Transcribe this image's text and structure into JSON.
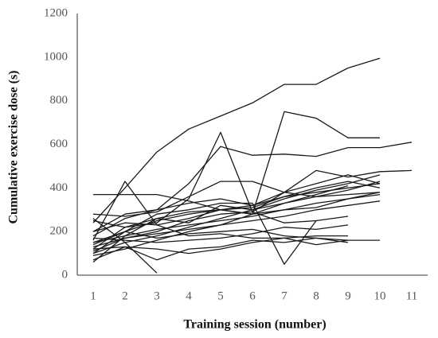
{
  "chart_data": {
    "type": "line",
    "x_label": "Training session (number)",
    "y_label": "Cumulative exercise dose (s)",
    "categories": [
      "1",
      "2",
      "3",
      "4",
      "5",
      "6",
      "7",
      "8",
      "9",
      "10",
      "11"
    ],
    "ylim": [
      0,
      1200
    ],
    "yticks": [
      0,
      200,
      400,
      600,
      800,
      1000,
      1200
    ],
    "color": "#1a1a1a",
    "grid": false,
    "series": [
      {
        "values": [
          240,
          400,
          565,
          670,
          730,
          790,
          875,
          875,
          950,
          995,
          null
        ]
      },
      {
        "values": [
          200,
          280,
          300,
          420,
          590,
          550,
          555,
          545,
          585,
          585,
          610
        ]
      },
      {
        "values": [
          150,
          200,
          250,
          280,
          300,
          280,
          750,
          720,
          630,
          630,
          null
        ]
      },
      {
        "values": [
          120,
          220,
          240,
          350,
          655,
          290,
          380,
          420,
          460,
          420,
          null
        ]
      },
      {
        "values": [
          100,
          200,
          280,
          300,
          330,
          330,
          50,
          250,
          null,
          null,
          null
        ]
      },
      {
        "values": [
          160,
          430,
          230,
          260,
          300,
          320,
          360,
          380,
          400,
          420,
          null
        ]
      },
      {
        "values": [
          260,
          150,
          10,
          null,
          null,
          null,
          null,
          null,
          null,
          null,
          null
        ]
      },
      {
        "values": [
          370,
          370,
          370,
          340,
          300,
          280,
          300,
          310,
          350,
          380,
          null
        ]
      },
      {
        "values": [
          180,
          260,
          300,
          330,
          350,
          320,
          380,
          480,
          450,
          475,
          480
        ]
      },
      {
        "values": [
          280,
          270,
          290,
          360,
          430,
          430,
          380,
          360,
          370,
          380,
          null
        ]
      },
      {
        "values": [
          100,
          150,
          180,
          220,
          260,
          300,
          350,
          390,
          420,
          460,
          null
        ]
      },
      {
        "values": [
          90,
          120,
          160,
          200,
          230,
          280,
          330,
          360,
          390,
          430,
          null
        ]
      },
      {
        "values": [
          140,
          200,
          170,
          190,
          200,
          210,
          180,
          170,
          160,
          160,
          null
        ]
      },
      {
        "values": [
          70,
          130,
          120,
          100,
          120,
          150,
          170,
          180,
          180,
          null,
          null
        ]
      },
      {
        "values": [
          120,
          130,
          70,
          120,
          130,
          160,
          150,
          170,
          150,
          null,
          null
        ]
      },
      {
        "values": [
          200,
          240,
          230,
          180,
          190,
          170,
          170,
          140,
          160,
          null,
          null
        ]
      },
      {
        "values": [
          110,
          170,
          200,
          250,
          280,
          290,
          240,
          250,
          270,
          null,
          null
        ]
      },
      {
        "values": [
          150,
          180,
          210,
          230,
          250,
          270,
          300,
          330,
          350,
          370,
          null
        ]
      },
      {
        "values": [
          130,
          170,
          190,
          210,
          230,
          250,
          270,
          300,
          320,
          340,
          null
        ]
      },
      {
        "values": [
          60,
          180,
          260,
          290,
          300,
          310,
          360,
          400,
          430,
          400,
          null
        ]
      },
      {
        "values": [
          170,
          160,
          150,
          160,
          170,
          190,
          220,
          210,
          230,
          null,
          null
        ]
      },
      {
        "values": [
          250,
          220,
          260,
          240,
          320,
          300,
          330,
          370,
          410,
          null,
          null
        ]
      }
    ]
  }
}
